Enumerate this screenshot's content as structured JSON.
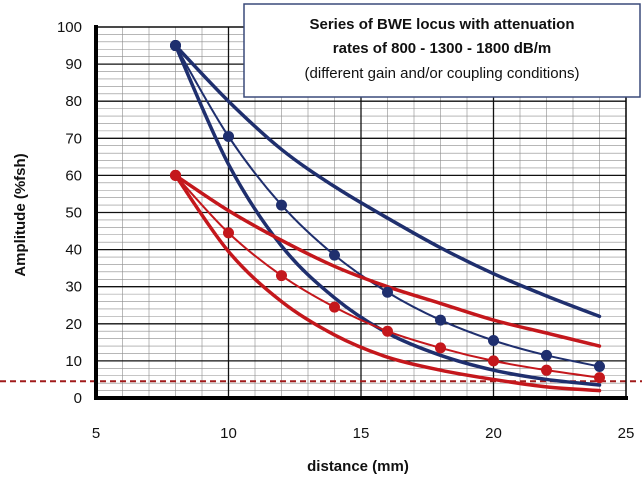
{
  "chart_data": {
    "type": "line",
    "title": "Series of BWE locus with attenuation rates of 800 - 1300 - 1800 dB/m",
    "subtitle": "(different gain and/or coupling conditions)",
    "title_lines": [
      "Series of BWE locus with attenuation",
      "rates of 800 - 1300 - 1800 dB/m"
    ],
    "xlabel": "distance (mm)",
    "ylabel": "Amplitude (%fsh)",
    "xlim": [
      5,
      25
    ],
    "ylim": [
      0,
      100
    ],
    "xticks": [
      5,
      10,
      15,
      20,
      25
    ],
    "yticks": [
      0,
      10,
      20,
      30,
      40,
      50,
      60,
      70,
      80,
      90,
      100
    ],
    "grid": true,
    "reference_line": {
      "y": 4.5,
      "color": "#a01b1b",
      "style": "dashed"
    },
    "colors": {
      "blue": "#1f2f6e",
      "red": "#c4171c"
    },
    "series": [
      {
        "color": "blue",
        "kind": "curve",
        "attenuation": 800,
        "x": [
          8,
          10,
          12,
          14,
          16,
          18,
          20,
          22,
          24
        ],
        "values": [
          95,
          80,
          67,
          57,
          48.5,
          40.5,
          33.5,
          27.5,
          22
        ]
      },
      {
        "color": "blue",
        "kind": "points_curve",
        "attenuation": 1300,
        "x": [
          8,
          10,
          12,
          14,
          16,
          18,
          20,
          22,
          24
        ],
        "values": [
          95,
          70.5,
          52,
          38.5,
          28.5,
          21,
          15.5,
          11.5,
          8.5
        ]
      },
      {
        "color": "blue",
        "kind": "curve",
        "attenuation": 1800,
        "x": [
          8,
          10,
          12,
          14,
          16,
          18,
          20,
          22,
          24
        ],
        "values": [
          95,
          63,
          41,
          27,
          17.5,
          11.5,
          7.5,
          5,
          3.5
        ]
      },
      {
        "color": "red",
        "kind": "curve",
        "attenuation": 800,
        "x": [
          8,
          10,
          12,
          14,
          16,
          18,
          20,
          22,
          24
        ],
        "values": [
          60,
          50.5,
          42.5,
          35.5,
          30,
          25.5,
          21,
          17.5,
          14
        ]
      },
      {
        "color": "red",
        "kind": "points_curve",
        "attenuation": 1300,
        "x": [
          8,
          10,
          12,
          14,
          16,
          18,
          20,
          22,
          24
        ],
        "values": [
          60,
          44.5,
          33,
          24.5,
          18,
          13.5,
          10,
          7.5,
          5.5
        ]
      },
      {
        "color": "red",
        "kind": "curve",
        "attenuation": 1800,
        "x": [
          8,
          10,
          12,
          14,
          16,
          18,
          20,
          22,
          24
        ],
        "values": [
          60,
          39.5,
          26,
          17,
          11,
          7.5,
          5,
          3,
          2
        ]
      }
    ]
  }
}
